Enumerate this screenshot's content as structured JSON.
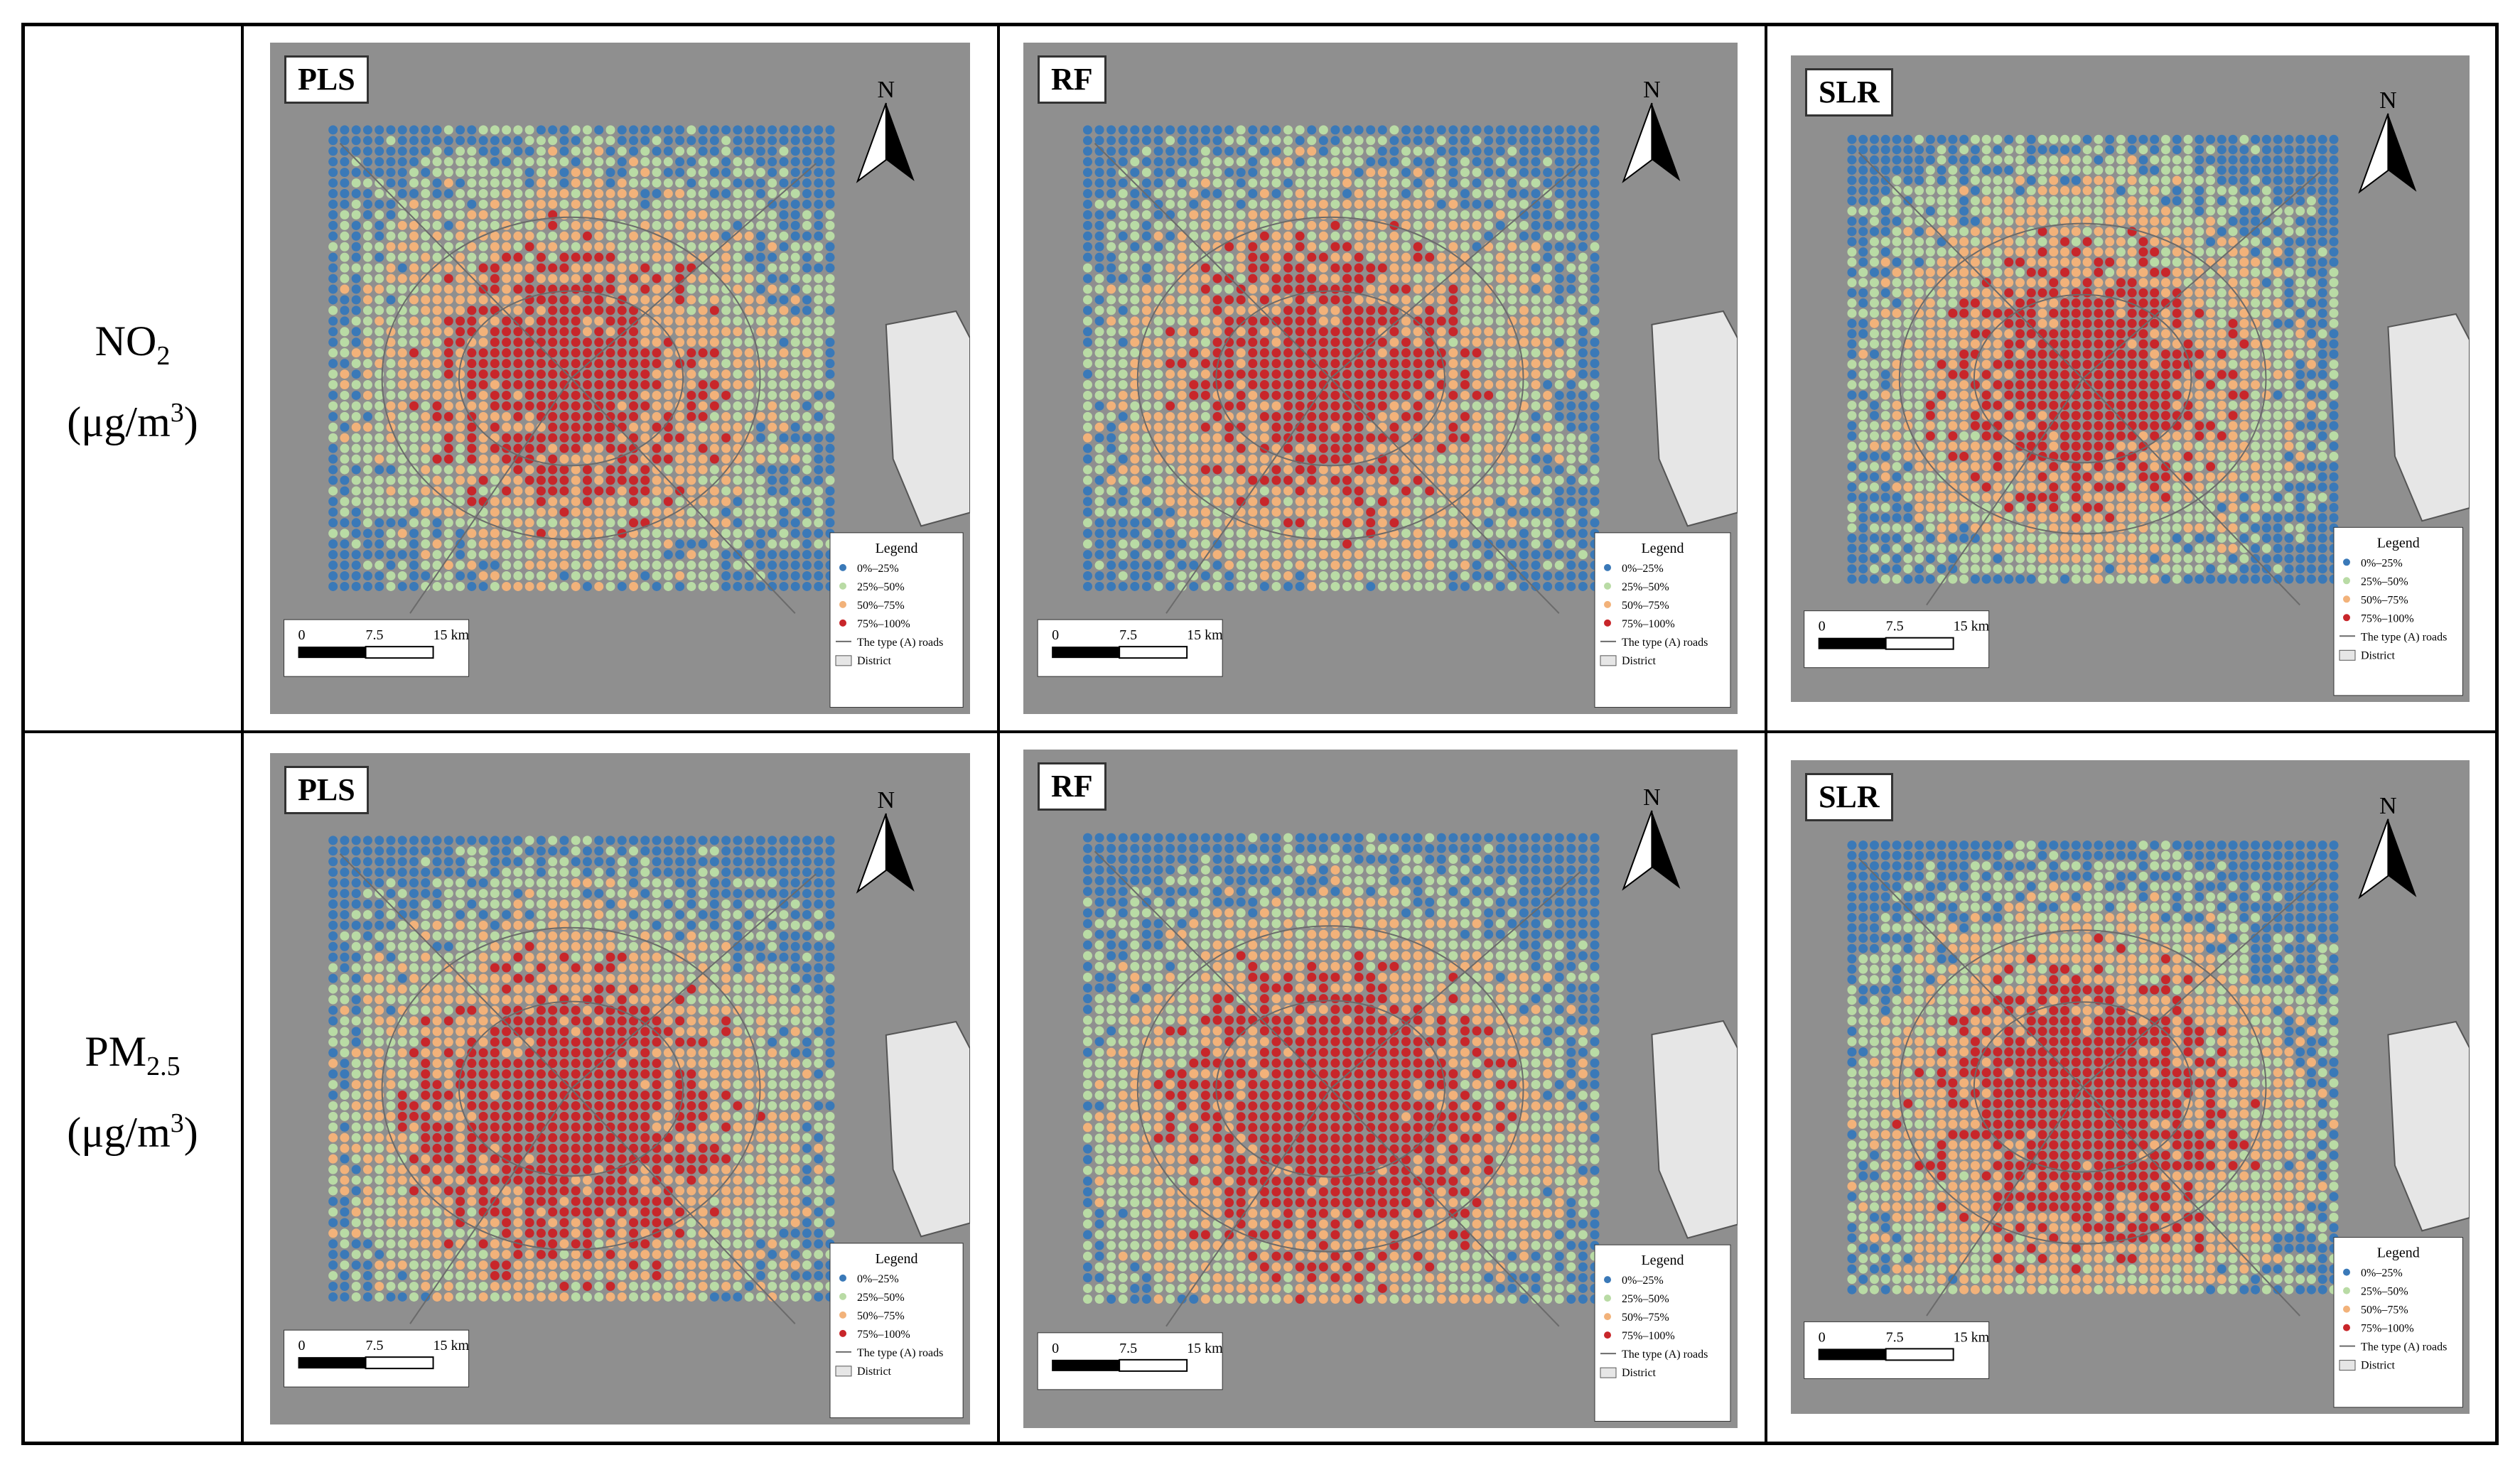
{
  "rows": [
    {
      "pollutant": "NO",
      "subscript": "2",
      "unit_prefix": "(μg/m",
      "unit_exp": "3",
      "unit_suffix": ")"
    },
    {
      "pollutant": "PM",
      "subscript": "2.5",
      "unit_prefix": "(μg/m",
      "unit_exp": "3",
      "unit_suffix": ")"
    }
  ],
  "models": [
    "PLS",
    "RF",
    "SLR"
  ],
  "north_label": "N",
  "scalebar": {
    "ticks": [
      "0",
      "7.5",
      "15 km"
    ]
  },
  "legend": {
    "title": "Legend",
    "items": [
      "0%–25%",
      "25%–50%",
      "50%–75%",
      "75%–100%"
    ],
    "road_label": "The type (A) roads",
    "district_label": "District"
  },
  "colors": {
    "class_1": "#3a79b8",
    "class_2": "#b9dba5",
    "class_3": "#f2b27a",
    "class_4": "#c8262a",
    "background": "#8f8f8f",
    "district_fill": "#e6e6e6",
    "road": "#6b6b6b"
  }
}
